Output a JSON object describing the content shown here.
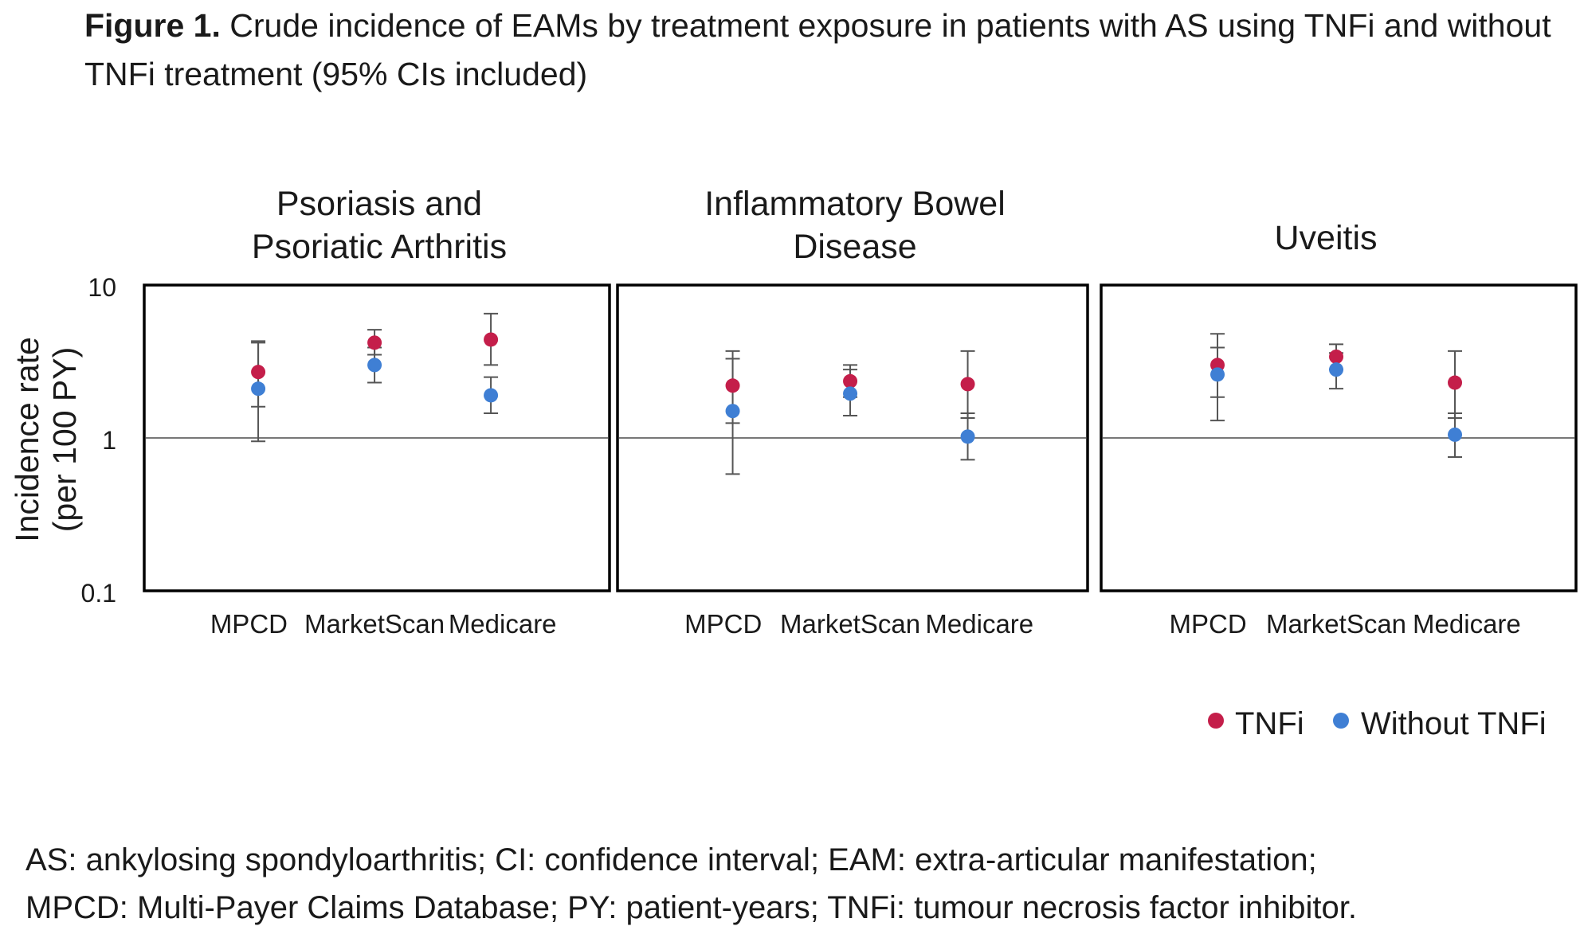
{
  "caption": {
    "label": "Figure 1.",
    "text": "Crude incidence of EAMs by treatment exposure in patients with AS using TNFi and without TNFi treatment (95% CIs included)"
  },
  "chart_data": {
    "type": "scatter",
    "ylabel": "Incidence rate (per 100 PY)",
    "ylabel_lines": [
      "Incidence rate",
      "(per 100 PY)"
    ],
    "yscale": "log",
    "ylim": [
      0.1,
      10
    ],
    "yticks": [
      "10",
      "1",
      "0.1"
    ],
    "reference_line": 1,
    "legend": {
      "position": "bottom-right",
      "entries": [
        "TNFi",
        "Without TNFi"
      ]
    },
    "colors": {
      "TNFi": "#c41e4a",
      "Without TNFi": "#3f7fd4"
    },
    "panels": [
      {
        "title_lines": [
          "Psoriasis and",
          "Psoriatic Arthritis"
        ],
        "categories": [
          "MPCD",
          "MarketScan",
          "Medicare"
        ],
        "series": [
          {
            "name": "TNFi",
            "values": [
              2.7,
              4.2,
              4.4
            ],
            "ci_low": [
              1.6,
              3.5,
              3.0
            ],
            "ci_high": [
              4.3,
              5.1,
              6.5
            ]
          },
          {
            "name": "Without TNFi",
            "values": [
              2.1,
              3.0,
              1.9
            ],
            "ci_low": [
              0.95,
              2.3,
              1.45
            ],
            "ci_high": [
              4.2,
              3.9,
              2.5
            ]
          }
        ]
      },
      {
        "title_lines": [
          "Inflammatory Bowel",
          "Disease"
        ],
        "categories": [
          "MPCD",
          "MarketScan",
          "Medicare"
        ],
        "series": [
          {
            "name": "TNFi",
            "values": [
              2.2,
              2.35,
              2.25
            ],
            "ci_low": [
              1.25,
              1.85,
              1.35
            ],
            "ci_high": [
              3.7,
              3.0,
              3.7
            ]
          },
          {
            "name": "Without TNFi",
            "values": [
              1.5,
              1.95,
              1.02
            ],
            "ci_low": [
              0.58,
              1.4,
              0.72
            ],
            "ci_high": [
              3.3,
              2.8,
              1.45
            ]
          }
        ]
      },
      {
        "title_lines": [
          "Uveitis"
        ],
        "categories": [
          "MPCD",
          "MarketScan",
          "Medicare"
        ],
        "series": [
          {
            "name": "TNFi",
            "values": [
              3.0,
              3.4,
              2.3
            ],
            "ci_low": [
              1.85,
              2.8,
              1.35
            ],
            "ci_high": [
              4.8,
              4.1,
              3.7
            ]
          },
          {
            "name": "Without TNFi",
            "values": [
              2.6,
              2.8,
              1.05
            ],
            "ci_low": [
              1.3,
              2.1,
              0.75
            ],
            "ci_high": [
              3.9,
              3.6,
              1.45
            ]
          }
        ]
      }
    ]
  },
  "footnote": {
    "line1": "AS: ankylosing spondyloarthritis; CI: confidence interval; EAM: extra-articular manifestation;",
    "line2": "MPCD: Multi-Payer Claims Database; PY: patient-years; TNFi: tumour necrosis factor inhibitor."
  }
}
